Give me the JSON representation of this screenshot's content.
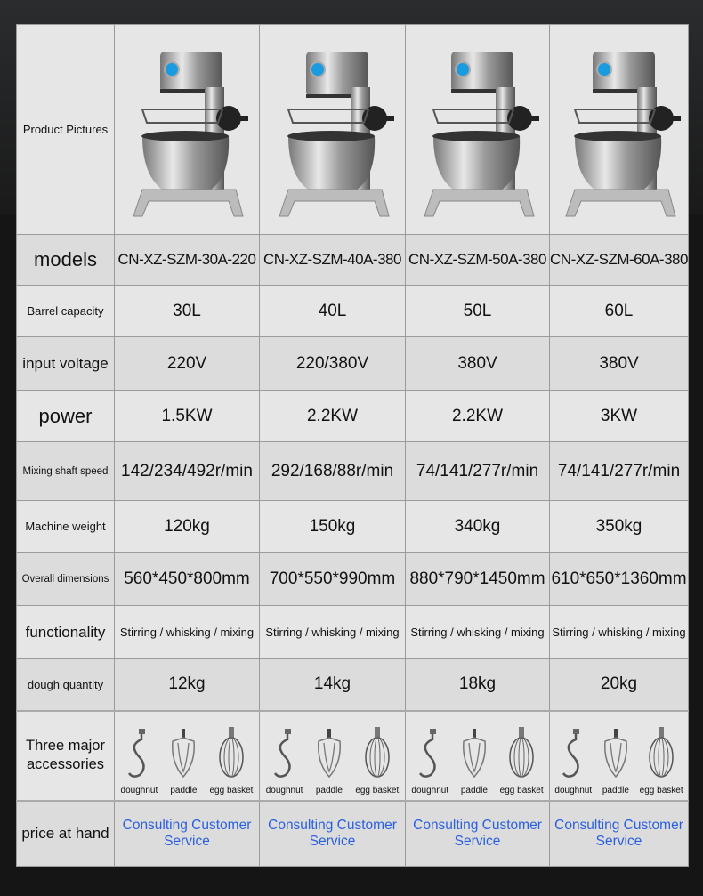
{
  "rows": {
    "pictures": "Product Pictures",
    "models": "models",
    "capacity": "Barrel capacity",
    "voltage": "input voltage",
    "power": "power",
    "speed": "Mixing shaft speed",
    "weight": "Machine weight",
    "dimensions": "Overall dimensions",
    "functionality": "functionality",
    "dough": "dough quantity",
    "accessories": "Three major accessories",
    "price": "price at hand"
  },
  "products": [
    {
      "model": "CN-XZ-SZM-30A-220",
      "capacity": "30L",
      "voltage": "220V",
      "power": "1.5KW",
      "speed": "142/234/492r/min",
      "weight": "120kg",
      "dimensions": "560*450*800mm",
      "functionality": "Stirring / whisking / mixing",
      "dough": "12kg",
      "price": "Consulting Customer Service"
    },
    {
      "model": "CN-XZ-SZM-40A-380",
      "capacity": "40L",
      "voltage": "220/380V",
      "power": "2.2KW",
      "speed": "292/168/88r/min",
      "weight": "150kg",
      "dimensions": "700*550*990mm",
      "functionality": "Stirring / whisking / mixing",
      "dough": "14kg",
      "price": "Consulting Customer Service"
    },
    {
      "model": "CN-XZ-SZM-50A-380",
      "capacity": "50L",
      "voltage": "380V",
      "power": "2.2KW",
      "speed": "74/141/277r/min",
      "weight": "340kg",
      "dimensions": "880*790*1450mm",
      "functionality": "Stirring / whisking / mixing",
      "dough": "18kg",
      "price": "Consulting Customer Service"
    },
    {
      "model": "CN-XZ-SZM-60A-380",
      "capacity": "60L",
      "voltage": "380V",
      "power": "3KW",
      "speed": "74/141/277r/min",
      "weight": "350kg",
      "dimensions": "610*650*1360mm",
      "functionality": "Stirring / whisking / mixing",
      "dough": "20kg",
      "price": "Consulting Customer Service"
    }
  ],
  "accessory_names": [
    "doughnut",
    "paddle",
    "egg basket"
  ],
  "colors": {
    "price_link": "#2a5fe0",
    "background": "#151515",
    "table": "#e0e0e0"
  }
}
